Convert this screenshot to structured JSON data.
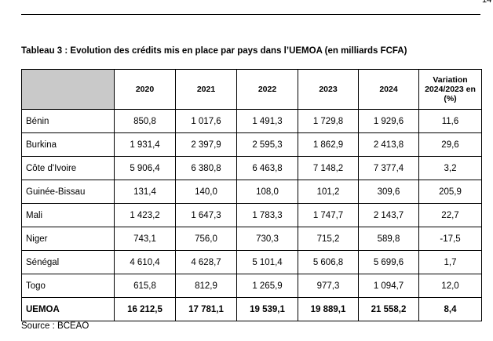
{
  "page_number": "14",
  "title": "Tableau 3 : Evolution des crédits mis en place par pays dans l’UEMOA (en milliards FCFA)",
  "table": {
    "header": [
      "",
      "2020",
      "2021",
      "2022",
      "2023",
      "2024",
      "Variation 2024/2023 en (%)"
    ],
    "rows": [
      [
        "Bénin",
        "850,8",
        "1 017,6",
        "1 491,3",
        "1 729,8",
        "1 929,6",
        "11,6"
      ],
      [
        "Burkina",
        "1 931,4",
        "2 397,9",
        "2 595,3",
        "1 862,9",
        "2 413,8",
        "29,6"
      ],
      [
        "Côte d'Ivoire",
        "5 906,4",
        "6 380,8",
        "6 463,8",
        "7 148,2",
        "7 377,4",
        "3,2"
      ],
      [
        "Guinée-Bissau",
        "131,4",
        "140,0",
        "108,0",
        "101,2",
        "309,6",
        "205,9"
      ],
      [
        "Mali",
        "1 423,2",
        "1 647,3",
        "1 783,3",
        "1 747,7",
        "2 143,7",
        "22,7"
      ],
      [
        "Niger",
        "743,1",
        "756,0",
        "730,3",
        "715,2",
        "589,8",
        "-17,5"
      ],
      [
        "Sénégal",
        "4 610,4",
        "4 628,7",
        "5 101,4",
        "5 606,8",
        "5 699,6",
        "1,7"
      ],
      [
        "Togo",
        "615,8",
        "812,9",
        "1 265,9",
        "977,3",
        "1 094,7",
        "12,0"
      ],
      [
        "UEMOA",
        "16 212,5",
        "17 781,1",
        "19 539,1",
        "19 889,1",
        "21 558,2",
        "8,4"
      ]
    ]
  },
  "source": "Source : BCEAO"
}
